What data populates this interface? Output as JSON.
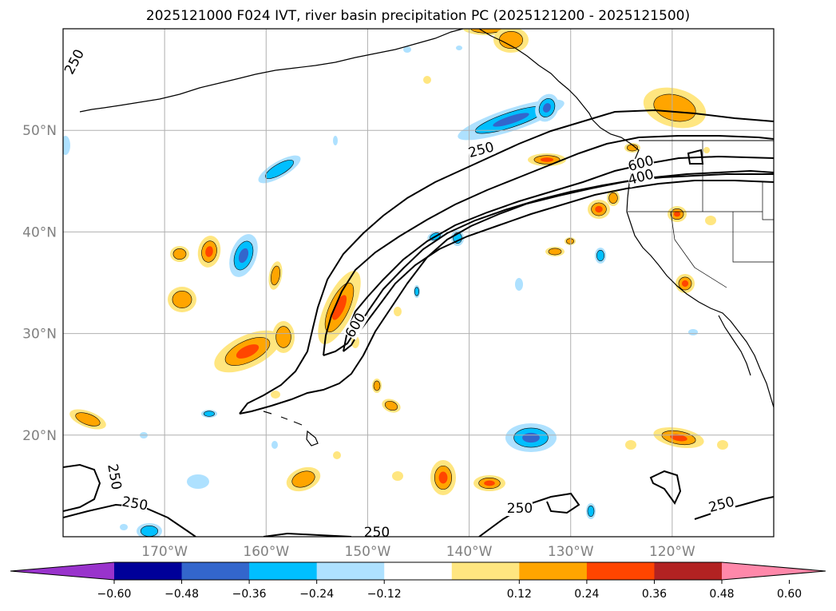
{
  "title": "2025121000 F024 IVT, river basin precipitation PC (2025121200 - 2025121500)",
  "map": {
    "lon_range": [
      -180,
      -110
    ],
    "lat_range": [
      10,
      60
    ],
    "grid_lons": [
      -170,
      -160,
      -150,
      -140,
      -130,
      -120
    ],
    "grid_lats": [
      20,
      30,
      40,
      50
    ],
    "lon_labels": [
      "170°W",
      "160°W",
      "150°W",
      "140°W",
      "130°W",
      "120°W"
    ],
    "lat_labels": [
      "20°N",
      "30°N",
      "40°N",
      "50°N"
    ],
    "tick_label_color": "#808080",
    "grid_color": "#b0b0b0"
  },
  "contours": {
    "color": "#000000",
    "labels": [
      "250",
      "250",
      "600",
      "400",
      "600",
      "250",
      "250",
      "250",
      "250",
      "250"
    ]
  },
  "colorbar": {
    "ticks": [
      "−0.60",
      "−0.48",
      "−0.36",
      "−0.24",
      "−0.12",
      "0.12",
      "0.24",
      "0.36",
      "0.48",
      "0.60"
    ],
    "colors": [
      "#9933cc",
      "#000099",
      "#3366cc",
      "#00bfff",
      "#aee1ff",
      "#ffffff",
      "#ffe680",
      "#ffa500",
      "#ff4500",
      "#b22222",
      "#ff88aa"
    ]
  },
  "palette": {
    "neg1": "#aee1ff",
    "neg2": "#00bfff",
    "neg3": "#3366cc",
    "pos1": "#ffe680",
    "pos2": "#ffa500",
    "pos3": "#ff4500"
  }
}
